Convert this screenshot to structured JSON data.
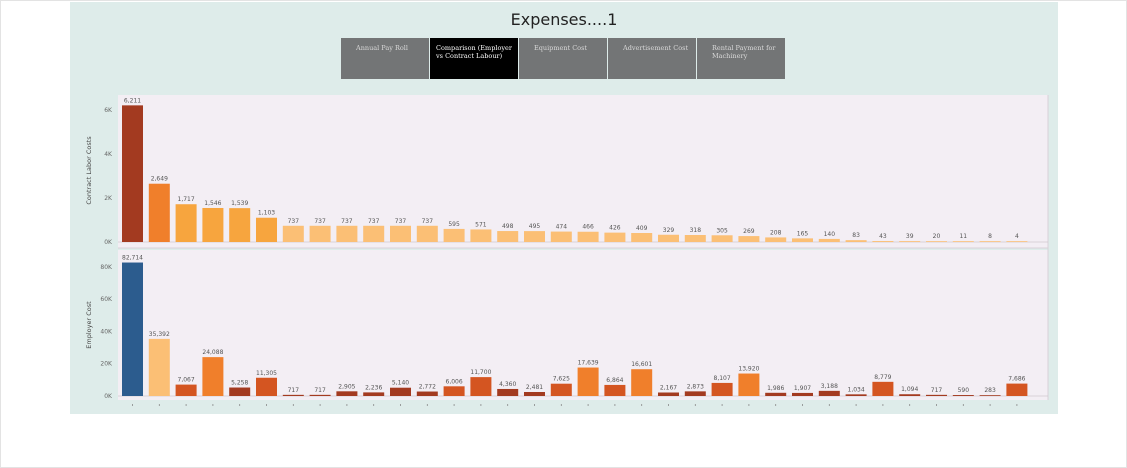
{
  "dashboard": {
    "title": "Expenses....1",
    "tabs": [
      {
        "label": "Annual Pay Roll",
        "active": false
      },
      {
        "label": "Comparison (Employer vs Contract Labour)",
        "active": true
      },
      {
        "label": "Equipment Cost",
        "active": false
      },
      {
        "label": "Advertisement Cost",
        "active": false
      },
      {
        "label": "Rental Payment for Machinery",
        "active": false
      }
    ]
  },
  "colors": {
    "dark_rust": "#a33a20",
    "orange": "#f07f2b",
    "light_orange": "#f7a53e",
    "pale_orange": "#fbbf75",
    "blue": "#2c5c8e",
    "panel_bg": "#f3eef4"
  },
  "chart_data": [
    {
      "type": "bar",
      "ylabel": "Contract Labor Costs",
      "ylim": [
        0,
        6500
      ],
      "y_ticks": [
        "0K",
        "2K",
        "4K",
        "6K"
      ],
      "values": [
        6211,
        2649,
        1717,
        1546,
        1539,
        1103,
        737,
        737,
        737,
        737,
        737,
        737,
        595,
        571,
        498,
        495,
        474,
        466,
        426,
        409,
        329,
        318,
        305,
        269,
        208,
        165,
        140,
        83,
        43,
        39,
        20,
        11,
        8,
        4
      ],
      "value_labels": [
        "6,211",
        "2,649",
        "1,717",
        "1,546",
        "1,539",
        "1,103",
        "737",
        "737",
        "737",
        "737",
        "737",
        "737",
        "595",
        "571",
        "498",
        "495",
        "474",
        "466",
        "426",
        "409",
        "329",
        "318",
        "305",
        "269",
        "208",
        "165",
        "140",
        "83",
        "43",
        "39",
        "20",
        "11",
        "8",
        "4"
      ]
    },
    {
      "type": "bar",
      "ylabel": "Employer Cost",
      "ylim": [
        0,
        88000
      ],
      "y_ticks": [
        "0K",
        "20K",
        "40K",
        "60K",
        "80K"
      ],
      "values": [
        82714,
        35392,
        7067,
        24088,
        5258,
        11305,
        717,
        717,
        2905,
        2236,
        5140,
        2772,
        6006,
        11700,
        4360,
        2481,
        7625,
        17639,
        6864,
        16601,
        2167,
        2873,
        8107,
        13920,
        1986,
        1907,
        3188,
        1034,
        8779,
        1094,
        717,
        590,
        283,
        7686
      ],
      "value_labels": [
        "82,714",
        "35,392",
        "7,067",
        "24,088",
        "5,258",
        "11,305",
        "717",
        "717",
        "2,905",
        "2,236",
        "5,140",
        "2,772",
        "6,006",
        "11,700",
        "4,360",
        "2,481",
        "7,625",
        "17,639",
        "6,864",
        "16,601",
        "2,167",
        "2,873",
        "8,107",
        "13,920",
        "1,986",
        "1,907",
        "3,188",
        "1,034",
        "8,779",
        "1,094",
        "717",
        "590",
        "283",
        "7,686"
      ]
    }
  ]
}
